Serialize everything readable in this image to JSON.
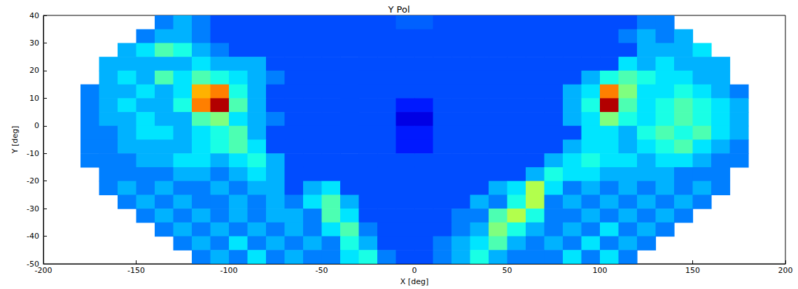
{
  "chart_data": {
    "type": "heatmap",
    "title": "Y Pol",
    "x_label": "X [deg]",
    "y_label": "Y [deg]",
    "xlim": [
      -200,
      200
    ],
    "xticks": [
      -200,
      -150,
      -100,
      -50,
      0,
      50,
      100,
      150,
      200
    ],
    "ylim": [
      -50,
      40
    ],
    "yticks": [
      -50,
      -40,
      -30,
      -20,
      -10,
      0,
      10,
      20,
      30,
      40
    ],
    "grid": false,
    "color_range": [
      0,
      1
    ],
    "x": [
      -175,
      -165,
      -155,
      -145,
      -135,
      -125,
      -115,
      -105,
      -95,
      -85,
      -75,
      -65,
      -55,
      -45,
      -35,
      -25,
      -15,
      -5,
      5,
      15,
      25,
      35,
      45,
      55,
      65,
      75,
      85,
      95,
      105,
      115,
      125,
      135,
      145,
      155,
      165,
      175
    ],
    "y": [
      37.5,
      32.5,
      27.5,
      22.5,
      17.5,
      12.5,
      7.5,
      2.5,
      -2.5,
      -7.5,
      -12.5,
      -17.5,
      -22.5,
      -27.5,
      -32.5,
      -37.5,
      -42.5,
      -47.5
    ],
    "cells": [
      [
        null,
        null,
        null,
        null,
        0.25,
        0.3,
        0.25,
        0.2,
        0.2,
        0.2,
        0.2,
        0.2,
        0.2,
        0.2,
        0.2,
        0.2,
        0.2,
        0.22,
        0.22,
        0.2,
        0.2,
        0.2,
        0.2,
        0.2,
        0.2,
        0.2,
        0.2,
        0.2,
        0.2,
        0.2,
        0.25,
        0.25,
        null,
        null,
        null,
        null
      ],
      [
        null,
        null,
        null,
        0.25,
        0.3,
        0.3,
        0.25,
        0.2,
        0.2,
        0.2,
        0.2,
        0.2,
        0.2,
        0.2,
        0.2,
        0.2,
        0.2,
        0.2,
        0.2,
        0.2,
        0.2,
        0.2,
        0.2,
        0.2,
        0.2,
        0.2,
        0.2,
        0.2,
        0.2,
        0.25,
        0.3,
        0.25,
        0.3,
        null,
        null,
        null
      ],
      [
        null,
        null,
        0.3,
        0.35,
        0.45,
        0.4,
        0.3,
        0.25,
        0.2,
        0.2,
        0.2,
        0.2,
        0.2,
        0.2,
        0.2,
        0.2,
        0.2,
        0.2,
        0.2,
        0.2,
        0.2,
        0.2,
        0.2,
        0.2,
        0.2,
        0.2,
        0.2,
        0.2,
        0.2,
        0.2,
        0.3,
        0.3,
        0.3,
        0.35,
        null,
        null
      ],
      [
        null,
        0.3,
        0.3,
        0.3,
        0.3,
        0.3,
        0.35,
        0.3,
        0.3,
        0.3,
        0.2,
        0.2,
        0.2,
        0.2,
        0.2,
        0.2,
        0.2,
        0.2,
        0.2,
        0.2,
        0.2,
        0.2,
        0.2,
        0.2,
        0.2,
        0.2,
        0.2,
        0.2,
        0.2,
        0.35,
        0.3,
        0.35,
        0.3,
        0.3,
        0.3,
        null
      ],
      [
        null,
        0.3,
        0.35,
        0.3,
        0.45,
        0.35,
        0.45,
        0.4,
        0.35,
        0.3,
        0.25,
        0.2,
        0.2,
        0.2,
        0.2,
        0.2,
        0.2,
        0.2,
        0.2,
        0.2,
        0.2,
        0.2,
        0.2,
        0.2,
        0.2,
        0.2,
        0.2,
        0.3,
        0.4,
        0.45,
        0.4,
        0.35,
        0.35,
        0.3,
        0.3,
        null
      ],
      [
        0.25,
        0.3,
        0.3,
        0.35,
        0.3,
        0.35,
        0.7,
        0.75,
        0.4,
        0.3,
        0.2,
        0.2,
        0.2,
        0.2,
        0.2,
        0.2,
        0.2,
        0.2,
        0.2,
        0.2,
        0.2,
        0.2,
        0.2,
        0.2,
        0.2,
        0.2,
        0.3,
        0.35,
        0.75,
        0.5,
        0.35,
        0.35,
        0.4,
        0.35,
        0.3,
        0.25
      ],
      [
        0.25,
        0.3,
        0.35,
        0.3,
        0.3,
        0.4,
        0.75,
        0.95,
        0.45,
        0.3,
        0.2,
        0.2,
        0.2,
        0.2,
        0.2,
        0.2,
        0.2,
        0.15,
        0.15,
        0.2,
        0.2,
        0.2,
        0.2,
        0.2,
        0.2,
        0.2,
        0.3,
        0.4,
        0.95,
        0.45,
        0.35,
        0.4,
        0.45,
        0.4,
        0.35,
        0.3
      ],
      [
        0.25,
        0.3,
        0.3,
        0.35,
        0.3,
        0.3,
        0.45,
        0.5,
        0.35,
        0.3,
        0.25,
        0.2,
        0.2,
        0.2,
        0.2,
        0.2,
        0.2,
        0.1,
        0.1,
        0.2,
        0.2,
        0.2,
        0.2,
        0.2,
        0.2,
        0.2,
        0.3,
        0.35,
        0.5,
        0.4,
        0.35,
        0.4,
        0.45,
        0.4,
        0.35,
        0.3
      ],
      [
        0.25,
        0.25,
        0.3,
        0.35,
        0.35,
        0.3,
        0.35,
        0.4,
        0.45,
        0.3,
        0.2,
        0.2,
        0.2,
        0.2,
        0.2,
        0.2,
        0.2,
        0.15,
        0.15,
        0.2,
        0.2,
        0.2,
        0.2,
        0.2,
        0.2,
        0.2,
        0.2,
        0.35,
        0.35,
        0.3,
        0.4,
        0.45,
        0.4,
        0.45,
        0.35,
        0.3
      ],
      [
        0.25,
        0.25,
        0.3,
        0.3,
        0.3,
        0.3,
        0.35,
        0.4,
        0.45,
        0.35,
        0.2,
        0.2,
        0.2,
        0.2,
        0.2,
        0.2,
        0.2,
        0.15,
        0.15,
        0.2,
        0.2,
        0.2,
        0.2,
        0.2,
        0.2,
        0.2,
        0.3,
        0.35,
        0.35,
        0.3,
        0.35,
        0.4,
        0.45,
        0.35,
        0.3,
        0.25
      ],
      [
        0.25,
        0.25,
        0.25,
        0.3,
        0.3,
        0.35,
        0.35,
        0.3,
        0.35,
        0.4,
        0.3,
        0.2,
        0.2,
        0.2,
        0.2,
        0.2,
        0.2,
        0.2,
        0.2,
        0.2,
        0.2,
        0.2,
        0.2,
        0.2,
        0.2,
        0.3,
        0.35,
        0.4,
        0.35,
        0.35,
        0.3,
        0.35,
        0.35,
        0.3,
        0.25,
        0.25
      ],
      [
        null,
        0.25,
        0.25,
        0.25,
        0.25,
        0.3,
        0.3,
        0.25,
        0.3,
        0.35,
        0.3,
        0.2,
        0.2,
        0.2,
        0.2,
        0.2,
        0.2,
        0.2,
        0.2,
        0.2,
        0.2,
        0.2,
        0.2,
        0.2,
        0.3,
        0.4,
        0.35,
        0.35,
        0.3,
        0.3,
        0.3,
        0.3,
        0.25,
        0.25,
        0.25,
        null
      ],
      [
        null,
        0.25,
        0.3,
        0.25,
        0.3,
        0.25,
        0.25,
        0.3,
        0.25,
        0.3,
        0.3,
        0.2,
        0.3,
        0.35,
        0.2,
        0.2,
        0.2,
        0.2,
        0.2,
        0.2,
        0.2,
        0.2,
        0.3,
        0.35,
        0.55,
        0.35,
        0.25,
        0.3,
        0.25,
        0.3,
        0.25,
        0.3,
        0.25,
        0.3,
        0.25,
        null
      ],
      [
        null,
        null,
        0.25,
        0.3,
        0.25,
        0.3,
        0.25,
        0.25,
        0.3,
        0.25,
        0.3,
        0.25,
        0.35,
        0.45,
        0.3,
        0.2,
        0.2,
        0.2,
        0.2,
        0.2,
        0.2,
        0.3,
        0.25,
        0.4,
        0.55,
        0.25,
        0.3,
        0.25,
        0.3,
        0.25,
        0.3,
        0.25,
        0.3,
        0.25,
        null,
        null
      ],
      [
        null,
        null,
        null,
        0.25,
        0.3,
        0.25,
        0.3,
        0.25,
        0.3,
        0.25,
        0.3,
        0.3,
        0.25,
        0.45,
        0.35,
        0.2,
        0.2,
        0.2,
        0.2,
        0.2,
        0.25,
        0.25,
        0.45,
        0.55,
        0.4,
        0.25,
        0.25,
        0.3,
        0.25,
        0.3,
        0.25,
        0.3,
        0.25,
        null,
        null,
        null
      ],
      [
        null,
        null,
        null,
        null,
        0.25,
        0.3,
        0.25,
        0.3,
        0.25,
        0.3,
        0.25,
        0.3,
        0.25,
        0.35,
        0.45,
        0.25,
        0.2,
        0.2,
        0.2,
        0.2,
        0.25,
        0.3,
        0.5,
        0.4,
        0.3,
        0.25,
        0.3,
        0.25,
        0.35,
        0.25,
        0.3,
        0.25,
        null,
        null,
        null,
        null
      ],
      [
        null,
        null,
        null,
        null,
        null,
        0.25,
        0.3,
        0.25,
        0.35,
        0.25,
        0.3,
        0.25,
        0.3,
        0.25,
        0.4,
        0.3,
        0.2,
        0.2,
        0.2,
        0.25,
        0.3,
        0.35,
        0.45,
        0.3,
        0.25,
        0.3,
        0.25,
        0.35,
        0.25,
        0.3,
        0.25,
        null,
        null,
        null,
        null,
        null
      ],
      [
        null,
        null,
        null,
        null,
        null,
        null,
        0.25,
        0.3,
        0.25,
        0.35,
        0.25,
        0.3,
        0.25,
        0.25,
        0.35,
        0.4,
        0.25,
        0.2,
        0.2,
        0.25,
        0.3,
        0.4,
        0.3,
        0.25,
        0.25,
        0.25,
        0.35,
        0.25,
        0.35,
        0.25,
        null,
        null,
        null,
        null,
        null,
        null
      ]
    ]
  }
}
